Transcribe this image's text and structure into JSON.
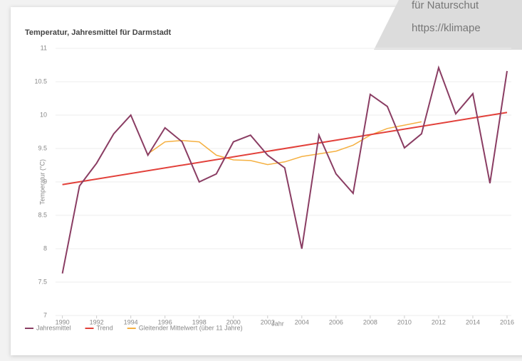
{
  "overlay": {
    "lines": [
      "für Naturschut",
      "https://klimape"
    ]
  },
  "chart_data": {
    "type": "line",
    "title": "Temperatur, Jahresmittel für Darmstadt",
    "x_label": "Jahr",
    "y_label": "Temperatur (°C)",
    "x": [
      1990,
      1991,
      1992,
      1993,
      1994,
      1995,
      1996,
      1997,
      1998,
      1999,
      2000,
      2001,
      2002,
      2003,
      2004,
      2005,
      2006,
      2007,
      2008,
      2009,
      2010,
      2011,
      2012,
      2013,
      2014,
      2015,
      2016
    ],
    "series": [
      {
        "name": "Jahresmittel",
        "color": "#8a3d63",
        "values": [
          7.63,
          8.94,
          9.28,
          9.72,
          10.0,
          9.4,
          9.81,
          9.6,
          9.0,
          9.12,
          9.6,
          9.7,
          9.4,
          9.21,
          8.0,
          9.7,
          9.12,
          8.83,
          10.31,
          10.13,
          9.51,
          9.72,
          10.71,
          10.02,
          10.32,
          8.98,
          10.66
        ]
      },
      {
        "name": "Trend",
        "color": "#e2403a",
        "x": [
          1990,
          2016
        ],
        "values": [
          8.96,
          10.04
        ]
      },
      {
        "name": "Gleitender Mittelwert (über 11 Jahre)",
        "color": "#f5b041",
        "values": [
          null,
          null,
          null,
          null,
          null,
          9.42,
          9.6,
          9.62,
          9.6,
          9.4,
          9.33,
          9.32,
          9.26,
          9.3,
          9.38,
          9.42,
          9.46,
          9.55,
          9.7,
          9.8,
          9.85,
          9.9,
          null,
          null,
          null,
          null,
          null
        ]
      }
    ],
    "xlim": [
      1989.6,
      2016.25
    ],
    "xticks": [
      1990,
      1992,
      1994,
      1996,
      1998,
      2000,
      2002,
      2004,
      2006,
      2008,
      2010,
      2012,
      2014,
      2016
    ],
    "ylim": [
      7,
      11
    ],
    "yticks": [
      7,
      7.5,
      8,
      8.5,
      9,
      9.5,
      10,
      10.5,
      11
    ],
    "grid": true
  }
}
